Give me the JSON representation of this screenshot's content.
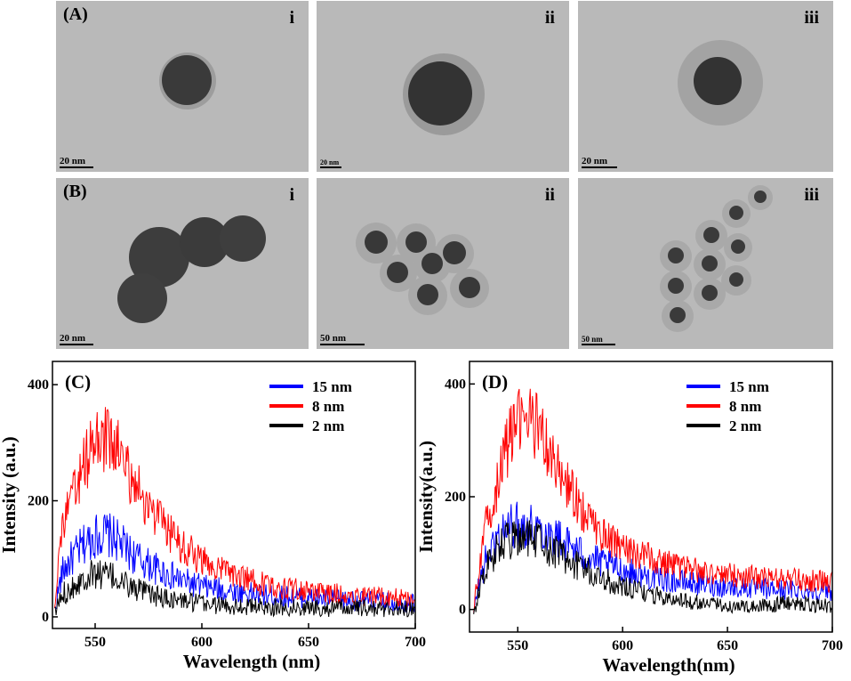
{
  "tem_panels": {
    "A": {
      "label": "(A)",
      "items": [
        {
          "roman": "i",
          "scale": "20 nm"
        },
        {
          "roman": "ii",
          "scale": "20 nm"
        },
        {
          "roman": "iii",
          "scale": "20 nm"
        }
      ]
    },
    "B": {
      "label": "(B)",
      "items": [
        {
          "roman": "i",
          "scale": "20 nm"
        },
        {
          "roman": "ii",
          "scale": "50 nm"
        },
        {
          "roman": "iii",
          "scale": "50 nm"
        }
      ]
    }
  },
  "colors": {
    "blue": "#0000ff",
    "red": "#ff0000",
    "black": "#000000"
  },
  "chart_data": [
    {
      "type": "line",
      "panel_label": "(C)",
      "xlabel": "Wavelength (nm)",
      "ylabel": "Intensity (a.u.)",
      "xlim": [
        530,
        700
      ],
      "ylim": [
        -20,
        440
      ],
      "x_ticks": [
        550,
        600,
        650,
        700
      ],
      "y_ticks": [
        0,
        200,
        400
      ],
      "legend_position": "top-right",
      "series": [
        {
          "name": "15 nm",
          "color": "#0000ff",
          "x": [
            531,
            533,
            535,
            540,
            545,
            550,
            555,
            560,
            565,
            570,
            580,
            590,
            600,
            610,
            620,
            630,
            640,
            650,
            660,
            670,
            680,
            690,
            700
          ],
          "y": [
            10,
            50,
            80,
            105,
            125,
            140,
            143,
            133,
            115,
            100,
            80,
            63,
            52,
            46,
            41,
            37,
            35,
            33,
            30,
            28,
            27,
            25,
            24
          ]
        },
        {
          "name": "8 nm",
          "color": "#ff0000",
          "x": [
            531,
            533,
            535,
            540,
            545,
            550,
            555,
            560,
            565,
            570,
            580,
            590,
            600,
            610,
            620,
            630,
            640,
            650,
            660,
            670,
            680,
            690,
            700
          ],
          "y": [
            20,
            110,
            160,
            210,
            265,
            300,
            308,
            290,
            255,
            220,
            165,
            125,
            97,
            80,
            66,
            55,
            49,
            44,
            41,
            38,
            36,
            34,
            32
          ]
        },
        {
          "name": "2 nm",
          "color": "#000000",
          "x": [
            531,
            533,
            535,
            540,
            545,
            550,
            555,
            560,
            565,
            570,
            580,
            590,
            600,
            610,
            620,
            630,
            640,
            650,
            660,
            670,
            680,
            690,
            700
          ],
          "y": [
            5,
            25,
            40,
            55,
            68,
            75,
            73,
            66,
            55,
            46,
            34,
            28,
            23,
            20,
            18,
            17,
            16,
            16,
            15,
            15,
            14,
            14,
            13
          ]
        }
      ]
    },
    {
      "type": "line",
      "panel_label": "(D)",
      "xlabel": "Wavelength(nm)",
      "ylabel": "Intensity(a.u.)",
      "xlim": [
        527,
        700
      ],
      "ylim": [
        -40,
        440
      ],
      "x_ticks": [
        550,
        600,
        650,
        700
      ],
      "y_ticks": [
        0,
        200,
        400
      ],
      "legend_position": "top-right",
      "series": [
        {
          "name": "15 nm",
          "color": "#0000ff",
          "x": [
            529,
            531,
            535,
            540,
            545,
            550,
            555,
            560,
            565,
            570,
            580,
            590,
            600,
            610,
            620,
            630,
            640,
            650,
            660,
            670,
            680,
            690,
            700
          ],
          "y": [
            -10,
            40,
            90,
            125,
            145,
            150,
            150,
            145,
            135,
            125,
            100,
            82,
            70,
            60,
            53,
            48,
            44,
            40,
            38,
            36,
            35,
            34,
            33
          ]
        },
        {
          "name": "8 nm",
          "color": "#ff0000",
          "x": [
            529,
            531,
            535,
            540,
            545,
            550,
            555,
            560,
            565,
            570,
            580,
            590,
            600,
            610,
            620,
            630,
            640,
            650,
            660,
            670,
            680,
            690,
            700
          ],
          "y": [
            0,
            60,
            150,
            220,
            290,
            330,
            345,
            320,
            280,
            240,
            180,
            135,
            110,
            95,
            82,
            72,
            66,
            62,
            58,
            55,
            53,
            51,
            50
          ]
        },
        {
          "name": "2 nm",
          "color": "#000000",
          "x": [
            529,
            531,
            535,
            540,
            545,
            550,
            555,
            560,
            565,
            570,
            580,
            590,
            600,
            610,
            620,
            630,
            640,
            650,
            660,
            670,
            680,
            690,
            700
          ],
          "y": [
            -20,
            30,
            75,
            105,
            120,
            125,
            128,
            120,
            110,
            100,
            75,
            55,
            40,
            30,
            22,
            15,
            10,
            6,
            5,
            8,
            12,
            8,
            5
          ]
        }
      ]
    }
  ]
}
